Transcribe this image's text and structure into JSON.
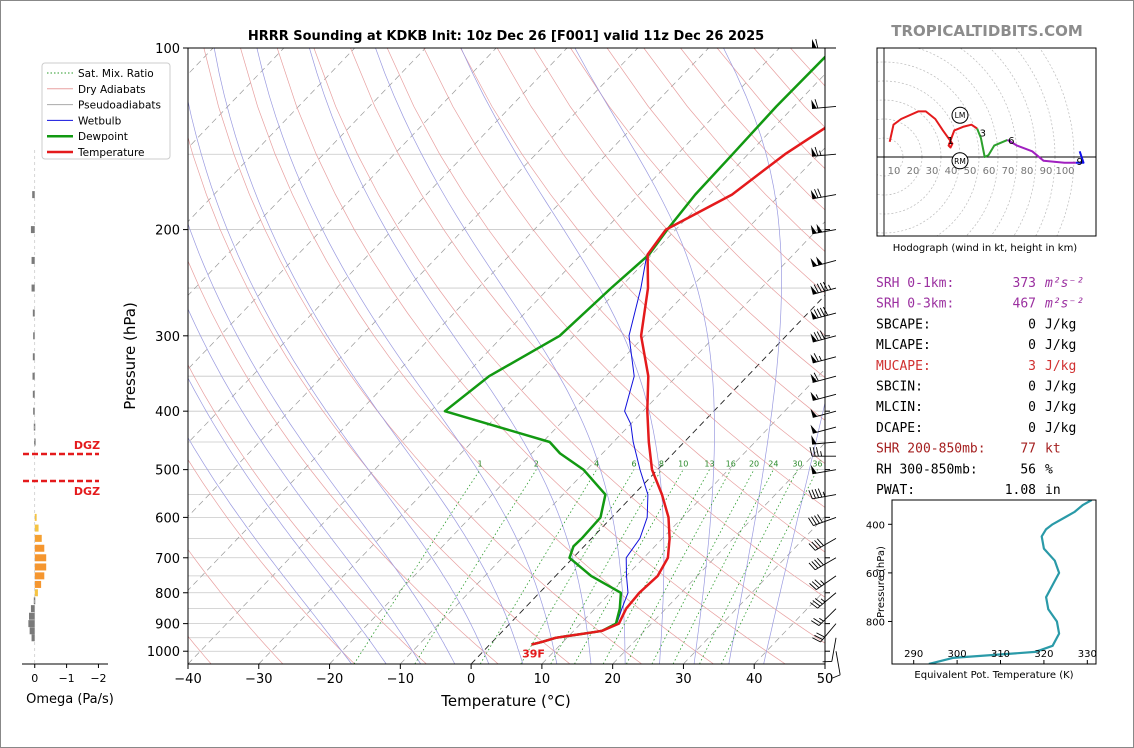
{
  "title": "HRRR Sounding at KDKB Init: 10z Dec 26 [F001] valid 11z Dec 26 2025",
  "watermark": "TROPICALTIDBITS.COM",
  "colors": {
    "temperature": "#e41a1c",
    "dewpoint": "#129912",
    "wetbulb": "#1010dd",
    "srh": "#9b30a0",
    "mucape": "#d03030",
    "shr": "#a52020",
    "hodo_red": "#e41a1c",
    "hodo_green": "#2ca02c",
    "hodo_purple": "#a020c0",
    "hodo_blue": "#1010ee",
    "theta_e": "#2a9aa8"
  },
  "chart_data": [
    {
      "type": "skewt",
      "name": "main-skewt",
      "xlabel": "Temperature (°C)",
      "ylabel": "Pressure (hPa)",
      "xlim": [
        -40,
        50
      ],
      "ylim": [
        1050,
        100
      ],
      "x_ticks": [
        "−40",
        "−30",
        "−20",
        "−10",
        "0",
        "10",
        "20",
        "30",
        "40",
        "50"
      ],
      "x_tick_values": [
        -40,
        -30,
        -20,
        -10,
        0,
        10,
        20,
        30,
        40,
        50
      ],
      "y_ticks": [
        "100",
        "200",
        "300",
        "400",
        "500",
        "600",
        "700",
        "800",
        "900",
        "1000"
      ],
      "y_tick_values": [
        100,
        200,
        300,
        400,
        500,
        600,
        700,
        800,
        900,
        1000
      ],
      "legend": {
        "position": "top-left",
        "entries": [
          {
            "label": "Sat. Mix. Ratio",
            "style": "dotted-green"
          },
          {
            "label": "Dry Adiabats",
            "style": "thin-red"
          },
          {
            "label": "Pseudoadiabats",
            "style": "thin-gray"
          },
          {
            "label": "Wetbulb",
            "style": "thin-blue"
          },
          {
            "label": "Dewpoint",
            "style": "thick-green"
          },
          {
            "label": "Temperature",
            "style": "thick-red"
          }
        ]
      },
      "mixing_ratio_labels": [
        "1",
        "2",
        "4",
        "6",
        "8",
        "10",
        "13",
        "16",
        "20",
        "24",
        "30",
        "36"
      ],
      "mixing_ratio_values": [
        1,
        2,
        4,
        6,
        8,
        10,
        13,
        16,
        20,
        24,
        30,
        36
      ],
      "surface_temp_label": "39F",
      "temperature": [
        [
          975,
          5.9
        ],
        [
          965,
          7.0
        ],
        [
          950,
          8.4
        ],
        [
          930,
          13.0
        ],
        [
          925,
          14.0
        ],
        [
          900,
          15.4
        ],
        [
          850,
          14.4
        ],
        [
          800,
          14.1
        ],
        [
          750,
          14.4
        ],
        [
          700,
          13.4
        ],
        [
          650,
          11.0
        ],
        [
          600,
          8.0
        ],
        [
          550,
          4.0
        ],
        [
          500,
          -0.8
        ],
        [
          450,
          -5.0
        ],
        [
          400,
          -9.4
        ],
        [
          350,
          -14.0
        ],
        [
          300,
          -20.5
        ],
        [
          250,
          -26.0
        ],
        [
          220,
          -30.6
        ],
        [
          200,
          -31.4
        ],
        [
          175,
          -26.8
        ],
        [
          150,
          -24.8
        ],
        [
          125,
          -21.0
        ],
        [
          100,
          -16.8
        ]
      ],
      "dewpoint": [
        [
          975,
          5.9
        ],
        [
          965,
          7.0
        ],
        [
          950,
          8.4
        ],
        [
          930,
          13.0
        ],
        [
          925,
          14.0
        ],
        [
          900,
          15.0
        ],
        [
          850,
          13.5
        ],
        [
          800,
          11.5
        ],
        [
          750,
          5.0
        ],
        [
          700,
          -0.5
        ],
        [
          670,
          -1.5
        ],
        [
          650,
          -1.4
        ],
        [
          600,
          -1.6
        ],
        [
          550,
          -4.0
        ],
        [
          500,
          -10.5
        ],
        [
          470,
          -16.0
        ],
        [
          450,
          -19.0
        ],
        [
          400,
          -38.0
        ],
        [
          350,
          -36.5
        ],
        [
          300,
          -32.0
        ],
        [
          250,
          -31.2
        ],
        [
          220,
          -30.4
        ],
        [
          200,
          -31.2
        ],
        [
          175,
          -32.0
        ],
        [
          150,
          -32.2
        ],
        [
          125,
          -32.5
        ],
        [
          100,
          -32.3
        ]
      ],
      "wetbulb": [
        [
          975,
          5.9
        ],
        [
          950,
          8.4
        ],
        [
          925,
          14.0
        ],
        [
          900,
          15.1
        ],
        [
          850,
          13.8
        ],
        [
          800,
          12.5
        ],
        [
          750,
          10.0
        ],
        [
          700,
          7.5
        ],
        [
          650,
          6.8
        ],
        [
          600,
          5.0
        ],
        [
          550,
          2.0
        ],
        [
          500,
          -2.5
        ],
        [
          450,
          -7.2
        ],
        [
          420,
          -10.0
        ],
        [
          400,
          -12.6
        ],
        [
          350,
          -16.0
        ],
        [
          300,
          -22.2
        ],
        [
          250,
          -27.0
        ],
        [
          220,
          -30.7
        ],
        [
          200,
          -31.4
        ]
      ],
      "wind_barb_pressures": [
        100,
        125,
        150,
        175,
        200,
        225,
        250,
        275,
        300,
        325,
        350,
        375,
        400,
        425,
        450,
        475,
        500,
        550,
        600,
        650,
        700,
        750,
        800,
        850,
        900,
        950,
        1000
      ],
      "wind_barb_speeds_kt": [
        60,
        60,
        65,
        70,
        100,
        100,
        95,
        90,
        80,
        65,
        60,
        55,
        50,
        50,
        50,
        35,
        50,
        45,
        40,
        40,
        40,
        35,
        35,
        25,
        30,
        10,
        10
      ],
      "wind_barb_dirs_deg": [
        270,
        265,
        265,
        260,
        260,
        255,
        255,
        255,
        255,
        255,
        255,
        255,
        255,
        255,
        265,
        270,
        260,
        260,
        250,
        240,
        240,
        235,
        230,
        225,
        220,
        190,
        170
      ]
    },
    {
      "type": "bar",
      "name": "omega-profile",
      "xlabel": "Omega (Pa/s)",
      "x_ticks": [
        "0",
        "−1",
        "−2"
      ],
      "x_tick_values": [
        0,
        -1,
        -2
      ],
      "xlim": [
        0.4,
        -2.3
      ],
      "dgz_label_top": "DGZ",
      "dgz_label_bottom": "DGZ",
      "dgz_pressures": [
        470,
        522
      ],
      "bars": [
        {
          "p": 175,
          "v": 0.08,
          "c": "#7a7a7a"
        },
        {
          "p": 200,
          "v": 0.12,
          "c": "#7a7a7a"
        },
        {
          "p": 225,
          "v": 0.1,
          "c": "#7a7a7a"
        },
        {
          "p": 250,
          "v": 0.1,
          "c": "#7a7a7a"
        },
        {
          "p": 275,
          "v": 0.06,
          "c": "#7a7a7a"
        },
        {
          "p": 300,
          "v": 0.05,
          "c": "#7a7a7a"
        },
        {
          "p": 325,
          "v": 0.06,
          "c": "#7a7a7a"
        },
        {
          "p": 350,
          "v": 0.07,
          "c": "#7a7a7a"
        },
        {
          "p": 375,
          "v": 0.06,
          "c": "#7a7a7a"
        },
        {
          "p": 400,
          "v": 0.05,
          "c": "#7a7a7a"
        },
        {
          "p": 425,
          "v": 0.03,
          "c": "#7a7a7a"
        },
        {
          "p": 450,
          "v": 0.02,
          "c": "#7a7a7a"
        },
        {
          "p": 600,
          "v": -0.06,
          "c": "#f5c342"
        },
        {
          "p": 625,
          "v": -0.12,
          "c": "#f5c342"
        },
        {
          "p": 650,
          "v": -0.22,
          "c": "#f5a030"
        },
        {
          "p": 675,
          "v": -0.3,
          "c": "#f5962f"
        },
        {
          "p": 700,
          "v": -0.36,
          "c": "#f5962f"
        },
        {
          "p": 725,
          "v": -0.36,
          "c": "#f5962f"
        },
        {
          "p": 750,
          "v": -0.3,
          "c": "#f5962f"
        },
        {
          "p": 775,
          "v": -0.2,
          "c": "#f5962f"
        },
        {
          "p": 800,
          "v": -0.1,
          "c": "#f5c342"
        },
        {
          "p": 825,
          "v": 0.03,
          "c": "#7a7a7a"
        },
        {
          "p": 850,
          "v": 0.12,
          "c": "#7a7a7a"
        },
        {
          "p": 875,
          "v": 0.18,
          "c": "#7a7a7a"
        },
        {
          "p": 900,
          "v": 0.2,
          "c": "#7a7a7a"
        },
        {
          "p": 925,
          "v": 0.16,
          "c": "#7a7a7a"
        },
        {
          "p": 950,
          "v": 0.1,
          "c": "#7a7a7a"
        }
      ]
    },
    {
      "type": "line",
      "name": "hodograph",
      "caption": "Hodograph (wind in kt, height in km)",
      "ring_labels": [
        "10",
        "20",
        "30",
        "40",
        "50",
        "60",
        "70",
        "80",
        "90",
        "100"
      ],
      "ring_values": [
        10,
        20,
        30,
        40,
        50,
        60,
        70,
        80,
        90,
        100
      ],
      "height_labels": [
        {
          "label": "1",
          "u": 35,
          "v": 9
        },
        {
          "label": "3",
          "u": 52,
          "v": 13
        },
        {
          "label": "6",
          "u": 67,
          "v": 9
        },
        {
          "label": "9",
          "u": 103,
          "v": -2
        }
      ],
      "storm_motion_labels": [
        {
          "label": "LM",
          "u": 40,
          "v": 22
        },
        {
          "label": "RM",
          "u": 40,
          "v": -2
        }
      ],
      "segments": [
        {
          "color": "hodo_red",
          "points": [
            [
              3,
              8
            ],
            [
              5,
              17
            ],
            [
              9,
              20
            ],
            [
              18,
              24
            ],
            [
              22,
              24
            ],
            [
              27,
              20
            ],
            [
              31,
              14
            ],
            [
              36,
              7
            ],
            [
              35,
              5
            ],
            [
              34,
              6
            ],
            [
              37,
              14
            ],
            [
              42,
              16
            ],
            [
              46,
              17
            ],
            [
              49,
              15
            ]
          ]
        },
        {
          "color": "hodo_green",
          "points": [
            [
              49,
              15
            ],
            [
              51,
              10
            ],
            [
              53,
              0
            ],
            [
              55,
              1
            ],
            [
              58,
              6
            ],
            [
              65,
              9
            ]
          ]
        },
        {
          "color": "hodo_purple",
          "points": [
            [
              65,
              9
            ],
            [
              70,
              6
            ],
            [
              78,
              3
            ],
            [
              84,
              -2
            ],
            [
              95,
              -3
            ],
            [
              101,
              -3
            ]
          ]
        },
        {
          "color": "hodo_blue",
          "points": [
            [
              101,
              -3
            ],
            [
              105,
              -3
            ],
            [
              103,
              3
            ]
          ]
        }
      ]
    },
    {
      "type": "line",
      "name": "theta-e-profile",
      "xlabel": "Equivalent Pot. Temperature (K)",
      "ylabel": "Pressure (hPa)",
      "x_ticks": [
        "290",
        "300",
        "310",
        "320",
        "330"
      ],
      "x_tick_values": [
        290,
        300,
        310,
        320,
        330
      ],
      "xlim": [
        285,
        332
      ],
      "y_ticks": [
        "400",
        "600",
        "800"
      ],
      "y_tick_values": [
        400,
        600,
        800
      ],
      "ylim": [
        975,
        300
      ],
      "points": [
        [
          293.5,
          975
        ],
        [
          299,
          950
        ],
        [
          318,
          925
        ],
        [
          322,
          900
        ],
        [
          323.5,
          850
        ],
        [
          323,
          800
        ],
        [
          321,
          750
        ],
        [
          320.5,
          700
        ],
        [
          322,
          650
        ],
        [
          323.5,
          600
        ],
        [
          322.5,
          550
        ],
        [
          320,
          500
        ],
        [
          319.5,
          450
        ],
        [
          320.5,
          420
        ],
        [
          322,
          400
        ],
        [
          325,
          370
        ],
        [
          327,
          350
        ],
        [
          329,
          320
        ],
        [
          331,
          300
        ]
      ]
    }
  ],
  "indices": [
    {
      "label": "SRH 0-1km:",
      "value": "373",
      "unit": "m²s⁻²",
      "color": "srh"
    },
    {
      "label": "SRH 0-3km:",
      "value": "467",
      "unit": "m²s⁻²",
      "color": "srh"
    },
    {
      "label": "SBCAPE:",
      "value": "0",
      "unit": "J/kg",
      "color": "black"
    },
    {
      "label": "MLCAPE:",
      "value": "0",
      "unit": "J/kg",
      "color": "black"
    },
    {
      "label": "MUCAPE:",
      "value": "3",
      "unit": "J/kg",
      "color": "mucape"
    },
    {
      "label": "SBCIN:",
      "value": "0",
      "unit": "J/kg",
      "color": "black"
    },
    {
      "label": "MLCIN:",
      "value": "0",
      "unit": "J/kg",
      "color": "black"
    },
    {
      "label": "DCAPE:",
      "value": "0",
      "unit": "J/kg",
      "color": "black"
    },
    {
      "label": "SHR 200-850mb:",
      "value": "77",
      "unit": "kt",
      "color": "shr"
    },
    {
      "label": "RH 300-850mb:",
      "value": "56",
      "unit": "%",
      "color": "black"
    },
    {
      "label": "PWAT:",
      "value": "1.08",
      "unit": "in",
      "color": "black"
    }
  ]
}
